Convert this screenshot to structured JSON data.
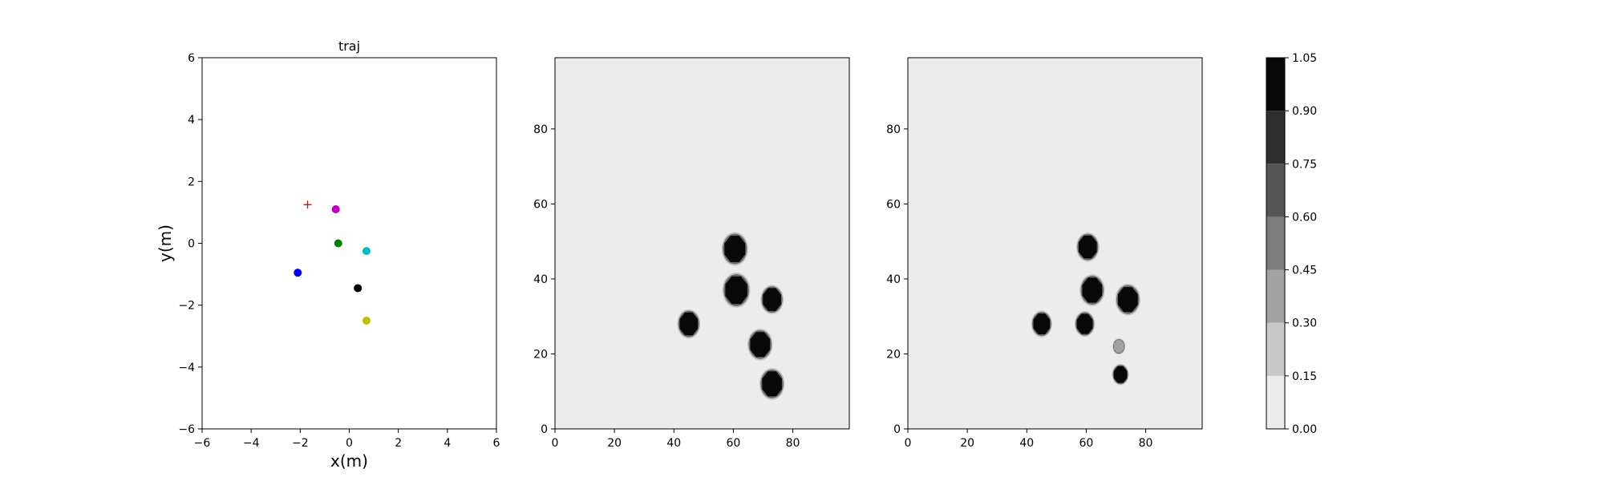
{
  "chart_data": [
    {
      "type": "scatter",
      "title": "traj",
      "xlabel": "x(m)",
      "ylabel": "y(m)",
      "xlim": [
        -6,
        6
      ],
      "ylim": [
        -6,
        6
      ],
      "xticks": [
        "−6",
        "−4",
        "−2",
        "0",
        "2",
        "4",
        "6"
      ],
      "yticks": [
        "−6",
        "−4",
        "−2",
        "0",
        "2",
        "4",
        "6"
      ],
      "grid": false,
      "series": [
        {
          "marker": "plus",
          "color": "#ff0000",
          "points": [
            [
              -1.7,
              1.25
            ]
          ]
        },
        {
          "marker": "circle",
          "color": "#bf00bf",
          "points": [
            [
              -0.55,
              1.1
            ]
          ]
        },
        {
          "marker": "circle",
          "color": "#008000",
          "points": [
            [
              -0.45,
              0.0
            ]
          ]
        },
        {
          "marker": "circle",
          "color": "#00bfbf",
          "points": [
            [
              0.7,
              -0.25
            ]
          ]
        },
        {
          "marker": "circle",
          "color": "#0000ff",
          "points": [
            [
              -2.1,
              -0.95
            ]
          ]
        },
        {
          "marker": "circle",
          "color": "#000000",
          "points": [
            [
              0.35,
              -1.45
            ]
          ]
        },
        {
          "marker": "circle",
          "color": "#bfbf00",
          "points": [
            [
              0.7,
              -2.5
            ]
          ]
        }
      ]
    },
    {
      "type": "heatmap",
      "xlim": [
        0,
        99
      ],
      "ylim": [
        0,
        99
      ],
      "xticks": [
        "0",
        "20",
        "40",
        "60",
        "80"
      ],
      "yticks": [
        "0",
        "20",
        "40",
        "60",
        "80"
      ],
      "background_value": 0.05,
      "blobs": [
        {
          "x": 60.5,
          "y": 48,
          "r": 3.8,
          "value": 1.0
        },
        {
          "x": 61,
          "y": 37,
          "r": 4.0,
          "value": 1.0
        },
        {
          "x": 73,
          "y": 34.5,
          "r": 3.3,
          "value": 1.0
        },
        {
          "x": 45,
          "y": 28,
          "r": 3.3,
          "value": 1.0
        },
        {
          "x": 69,
          "y": 22.5,
          "r": 3.6,
          "value": 1.0
        },
        {
          "x": 73,
          "y": 12,
          "r": 3.6,
          "value": 1.0
        }
      ]
    },
    {
      "type": "heatmap",
      "xlim": [
        0,
        99
      ],
      "ylim": [
        0,
        99
      ],
      "xticks": [
        "0",
        "20",
        "40",
        "60",
        "80"
      ],
      "yticks": [
        "0",
        "20",
        "40",
        "60",
        "80"
      ],
      "background_value": 0.05,
      "blobs": [
        {
          "x": 60.5,
          "y": 48.5,
          "r": 3.3,
          "value": 1.0
        },
        {
          "x": 62,
          "y": 37,
          "r": 3.6,
          "value": 1.0
        },
        {
          "x": 74,
          "y": 34.5,
          "r": 3.6,
          "value": 1.0
        },
        {
          "x": 45,
          "y": 28,
          "r": 3.0,
          "value": 1.0
        },
        {
          "x": 59.5,
          "y": 28,
          "r": 2.9,
          "value": 1.0
        },
        {
          "x": 71.5,
          "y": 14.5,
          "r": 2.4,
          "value": 0.95
        },
        {
          "x": 71,
          "y": 22,
          "r": 1.8,
          "value": 0.4
        }
      ]
    }
  ],
  "colorbar": {
    "levels": [
      0.0,
      0.15,
      0.3,
      0.45,
      0.6,
      0.75,
      0.9,
      1.05
    ],
    "tick_labels": [
      "0.00",
      "0.15",
      "0.30",
      "0.45",
      "0.60",
      "0.75",
      "0.90",
      "1.05"
    ],
    "colors": [
      "#ececec",
      "#c8c8c8",
      "#a2a2a2",
      "#7c7c7c",
      "#555555",
      "#2e2e2e",
      "#080808"
    ]
  }
}
